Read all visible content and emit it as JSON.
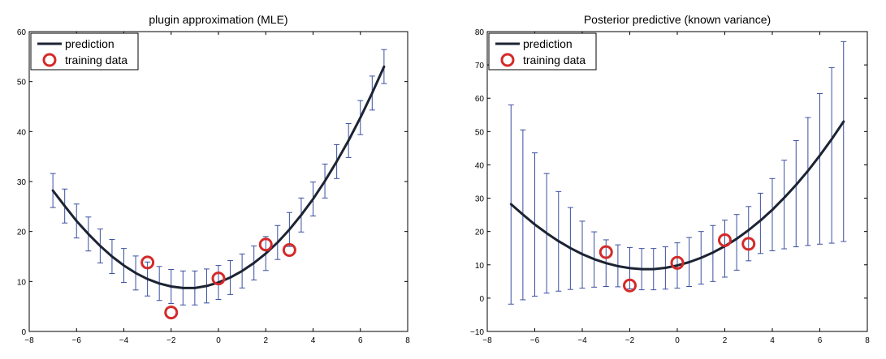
{
  "chart_data": [
    {
      "type": "line",
      "title": "plugin approximation (MLE)",
      "xlim": [
        -8,
        8
      ],
      "ylim": [
        0,
        60
      ],
      "xticks": [
        -8,
        -6,
        -4,
        -2,
        0,
        2,
        4,
        6,
        8
      ],
      "yticks": [
        0,
        10,
        20,
        30,
        40,
        50,
        60
      ],
      "xtick_labels": [
        "−8",
        "−6",
        "−4",
        "−2",
        "0",
        "2",
        "4",
        "6",
        "8"
      ],
      "ytick_labels": [
        "0",
        "10",
        "20",
        "30",
        "40",
        "50",
        "60"
      ],
      "grid": false,
      "legend": {
        "placement": "top-left",
        "entries": [
          {
            "label": "prediction",
            "marker": "line"
          },
          {
            "label": "training data",
            "marker": "circle"
          }
        ]
      },
      "colors": {
        "prediction": "#1c2333",
        "training_data": "#d42a2a",
        "error_bars": "#3b4fa0"
      },
      "prediction": {
        "name": "prediction",
        "x": [
          -7.0,
          -6.5,
          -6.0,
          -5.5,
          -5.0,
          -4.5,
          -4.0,
          -3.5,
          -3.0,
          -2.5,
          -2.0,
          -1.5,
          -1.0,
          -0.5,
          0.0,
          0.5,
          1.0,
          1.5,
          2.0,
          2.5,
          3.0,
          3.5,
          4.0,
          4.5,
          5.0,
          5.5,
          6.0,
          6.5,
          7.0
        ],
        "y": [
          28.2,
          25.1,
          22.1,
          19.5,
          17.1,
          15.0,
          13.2,
          11.7,
          10.5,
          9.6,
          9.0,
          8.7,
          8.7,
          9.1,
          9.8,
          10.8,
          12.1,
          13.7,
          15.6,
          17.8,
          20.4,
          23.3,
          26.5,
          30.1,
          34.0,
          38.2,
          42.8,
          47.7,
          53.0
        ],
        "error_lower": [
          24.8,
          21.7,
          18.7,
          16.1,
          13.7,
          11.6,
          9.8,
          8.3,
          7.1,
          6.2,
          5.6,
          5.3,
          5.3,
          5.7,
          6.4,
          7.4,
          8.7,
          10.3,
          12.2,
          14.4,
          17.0,
          19.9,
          23.1,
          26.7,
          30.6,
          34.8,
          39.4,
          44.3,
          49.6
        ],
        "error_upper": [
          31.6,
          28.5,
          25.5,
          22.9,
          20.5,
          18.4,
          16.6,
          15.1,
          13.9,
          13.0,
          12.4,
          12.1,
          12.1,
          12.5,
          13.2,
          14.2,
          15.5,
          17.1,
          19.0,
          21.2,
          23.8,
          26.7,
          29.9,
          33.5,
          37.4,
          41.6,
          46.2,
          51.1,
          56.4
        ]
      },
      "training_data": {
        "name": "training data",
        "x": [
          -3,
          -2,
          0,
          2,
          3
        ],
        "y": [
          13.8,
          3.8,
          10.6,
          17.4,
          16.3
        ]
      }
    },
    {
      "type": "line",
      "title": "Posterior predictive (known variance)",
      "xlim": [
        -8,
        8
      ],
      "ylim": [
        -10,
        80
      ],
      "xticks": [
        -8,
        -6,
        -4,
        -2,
        0,
        2,
        4,
        6,
        8
      ],
      "yticks": [
        -10,
        0,
        10,
        20,
        30,
        40,
        50,
        60,
        70,
        80
      ],
      "xtick_labels": [
        "−8",
        "−6",
        "−4",
        "−2",
        "0",
        "2",
        "4",
        "6",
        "8"
      ],
      "ytick_labels": [
        "−10",
        "0",
        "10",
        "20",
        "30",
        "40",
        "50",
        "60",
        "70",
        "80"
      ],
      "grid": false,
      "legend": {
        "placement": "top-left",
        "entries": [
          {
            "label": "prediction",
            "marker": "line"
          },
          {
            "label": "training data",
            "marker": "circle"
          }
        ]
      },
      "colors": {
        "prediction": "#1c2333",
        "training_data": "#d42a2a",
        "error_bars": "#3b4fa0"
      },
      "prediction": {
        "name": "prediction",
        "x": [
          -7.0,
          -6.5,
          -6.0,
          -5.5,
          -5.0,
          -4.5,
          -4.0,
          -3.5,
          -3.0,
          -2.5,
          -2.0,
          -1.5,
          -1.0,
          -0.5,
          0.0,
          0.5,
          1.0,
          1.5,
          2.0,
          2.5,
          3.0,
          3.5,
          4.0,
          4.5,
          5.0,
          5.5,
          6.0,
          6.5,
          7.0
        ],
        "y": [
          28.2,
          25.1,
          22.1,
          19.5,
          17.1,
          15.0,
          13.2,
          11.7,
          10.5,
          9.6,
          9.0,
          8.7,
          8.7,
          9.1,
          9.8,
          10.8,
          12.1,
          13.7,
          15.6,
          17.8,
          20.4,
          23.3,
          26.5,
          30.1,
          34.0,
          38.2,
          42.8,
          47.7,
          53.0
        ],
        "error_lower": [
          -1.8,
          -0.5,
          0.6,
          1.5,
          2.1,
          2.6,
          3.0,
          3.3,
          3.5,
          3.4,
          2.8,
          2.5,
          2.5,
          2.7,
          3.0,
          3.5,
          4.2,
          5.0,
          6.3,
          8.4,
          11.2,
          13.4,
          14.2,
          14.8,
          15.4,
          15.8,
          16.2,
          16.5,
          17.0
        ],
        "error_upper": [
          58.0,
          50.5,
          43.6,
          37.4,
          32.0,
          27.2,
          23.1,
          19.9,
          17.5,
          16.0,
          15.2,
          14.9,
          14.9,
          15.4,
          16.6,
          18.2,
          20.0,
          21.8,
          23.4,
          25.1,
          27.5,
          31.5,
          35.9,
          41.4,
          47.3,
          54.2,
          61.4,
          69.2,
          77.0
        ]
      },
      "training_data": {
        "name": "training data",
        "x": [
          -3,
          -2,
          0,
          2,
          3
        ],
        "y": [
          13.8,
          3.8,
          10.6,
          17.4,
          16.3
        ]
      }
    }
  ]
}
